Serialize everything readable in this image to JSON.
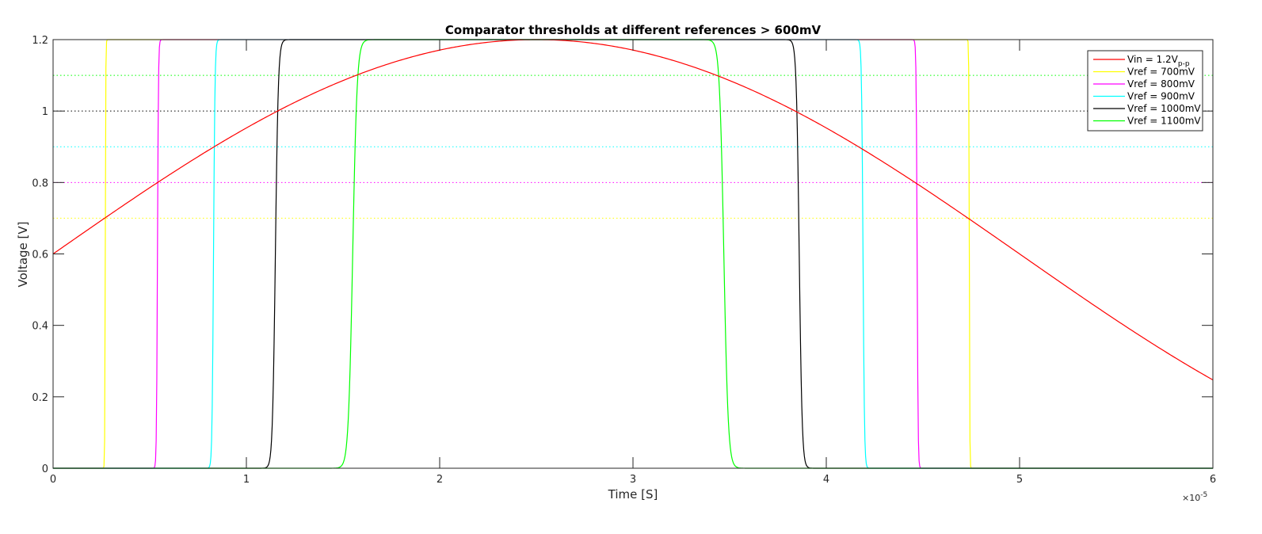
{
  "chart_data": {
    "type": "line",
    "title": "Comparator thresholds at different references > 600mV",
    "xlabel": "Time [S]",
    "ylabel": "Voltage [V]",
    "x_exponent_label": "×10",
    "x_exponent_power": "-5",
    "xlim": [
      0,
      6
    ],
    "ylim": [
      0,
      1.2
    ],
    "xticks": [
      "0",
      "1",
      "2",
      "3",
      "4",
      "5",
      "6"
    ],
    "yticks": [
      "0",
      "0.2",
      "0.4",
      "0.6",
      "0.8",
      "1",
      "1.2"
    ],
    "legend_position": "top-right",
    "input_signal": {
      "name_main": "Vin = 1.2V",
      "name_sub": "p-p",
      "color": "#ff0000",
      "offset": 0.6,
      "amplitude": 0.6,
      "period": 10,
      "x_start": 0,
      "x_end": 6
    },
    "series": [
      {
        "name": "Vref = 700mV",
        "color": "#ffff00",
        "vref": 0.7,
        "high": 1.2,
        "low": 0,
        "rise": 0.27,
        "fall": 4.74,
        "edge": 0.005
      },
      {
        "name": "Vref = 800mV",
        "color": "#ff00ff",
        "vref": 0.8,
        "high": 1.2,
        "low": 0,
        "rise": 0.54,
        "fall": 4.47,
        "edge": 0.01
      },
      {
        "name": "Vref = 900mV",
        "color": "#00ffff",
        "vref": 0.9,
        "high": 1.2,
        "low": 0,
        "rise": 0.83,
        "fall": 4.19,
        "edge": 0.015
      },
      {
        "name": "Vref = 1000mV",
        "color": "#000000",
        "vref": 1.0,
        "high": 1.2,
        "low": 0,
        "rise": 1.15,
        "fall": 3.86,
        "edge": 0.03
      },
      {
        "name": "Vref = 1100mV",
        "color": "#00ff00",
        "vref": 1.1,
        "high": 1.2,
        "low": 0,
        "rise": 1.55,
        "fall": 3.47,
        "edge": 0.045
      }
    ]
  }
}
